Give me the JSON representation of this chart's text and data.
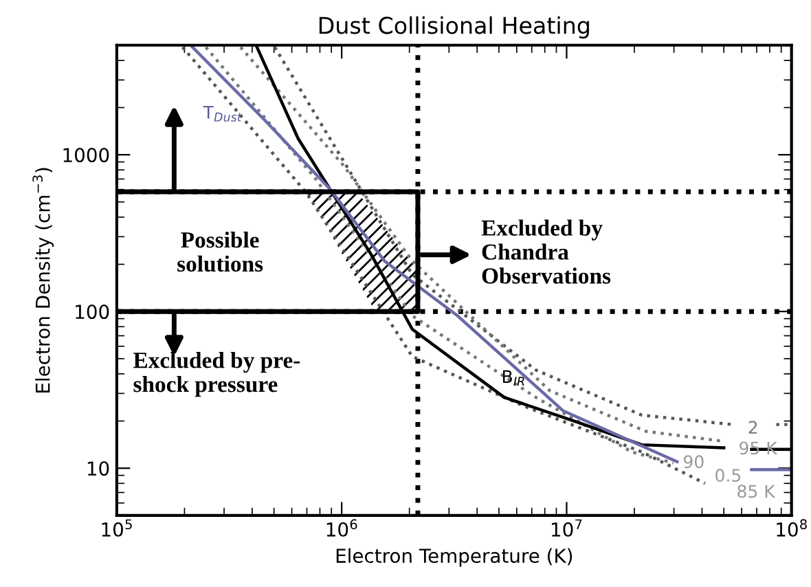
{
  "chart_data": {
    "type": "line",
    "title": "Dust Collisional Heating",
    "xlabel": "Electron Temperature (K)",
    "ylabel": "Electron Density (cm$^{−3}$)",
    "log": "xy",
    "xlim": [
      100000,
      100000000
    ],
    "ylim": [
      5,
      5000
    ],
    "xticks": [
      {
        "value": 100000,
        "label": "10$^{5}$"
      },
      {
        "value": 1000000,
        "label": "10$^{6}$"
      },
      {
        "value": 10000000,
        "label": "10$^{7}$"
      },
      {
        "value": 100000000,
        "label": "10$^{8}$"
      }
    ],
    "yticks": [
      10,
      100,
      1000
    ],
    "grid": false,
    "marker": "none",
    "series": [
      {
        "type": "area",
        "color": "#000000",
        "x": [
          697000,
          1170000,
          2180000,
          2180000,
          1410000,
          697000
        ],
        "values": [
          580,
          580,
          183,
          100,
          100,
          580
        ]
      },
      {
        "color": "#555555",
        "line_style": "dotted",
        "x": [
          504000,
          1170000,
          2060000,
          7300000,
          21600000,
          54600000,
          60000000,
          85500000,
          100000000
        ],
        "values": [
          4860,
          656,
          172,
          42.3,
          21.8,
          19.0,
          null,
          19.0,
          19.0
        ]
      },
      {
        "color": "#555555",
        "line_style": "dotted",
        "x": [
          196000,
          697000,
          2060000,
          6600000,
          21600000,
          41200000
        ],
        "values": [
          4860,
          571,
          51.6,
          24.6,
          12.7,
          8.0
        ]
      },
      {
        "color": "#777777",
        "line_style": "dotted",
        "x": [
          355000,
          1020000,
          2060000,
          8400000,
          22500000,
          48800000
        ],
        "values": [
          4860,
          852,
          210,
          31.3,
          17.2,
          14.9
        ]
      },
      {
        "color": "#777777",
        "line_style": "dotted",
        "x": [
          249000,
          769000,
          2060000,
          7300000,
          19500000,
          29800000
        ],
        "values": [
          4860,
          697,
          94,
          28.3,
          12.7,
          10.8
        ]
      },
      {
        "color": "#000000",
        "line_style": "solid",
        "x": [
          420000,
          640000,
          885000,
          1350000,
          2060000,
          5280000,
          10700000,
          21600000,
          50000000,
          58000000,
          66400000,
          100000000
        ],
        "values": [
          4860,
          1270,
          606,
          232,
          77,
          28.3,
          20.1,
          14.1,
          13.5,
          null,
          13.2,
          13.2
        ]
      },
      {
        "color": "#6a6aa8",
        "line_style": "solid",
        "x": [
          217000,
          457000,
          885000,
          1550000,
          3270000,
          9670000,
          31000000,
          45000000,
          66400000,
          100000000
        ],
        "values": [
          4860,
          1650,
          606,
          210,
          94,
          23.2,
          11.0,
          null,
          9.8,
          9.8
        ]
      },
      {
        "color": "#000000",
        "line_style": "solid",
        "x": [
          100000,
          2180000,
          2180000,
          100000
        ],
        "values": [
          580,
          580,
          100,
          100
        ]
      }
    ],
    "ref_lines": [
      {
        "axis": "x",
        "value": 2180000,
        "line_style": "dotted",
        "color": "#000000"
      },
      {
        "axis": "y",
        "value": 580,
        "line_style": "dotted",
        "color": "#000000"
      },
      {
        "axis": "y",
        "value": 100,
        "line_style": "dotted",
        "color": "#000000"
      }
    ],
    "annotations": [
      "Possible\nsolutions",
      "Excluded by\nChandra\nObservations",
      "Excluded by pre-\nshock pressure",
      "T$_{Dust}$",
      "B$_{IR}$",
      "2",
      "95 K",
      "90",
      "0.5",
      "85 K"
    ]
  }
}
